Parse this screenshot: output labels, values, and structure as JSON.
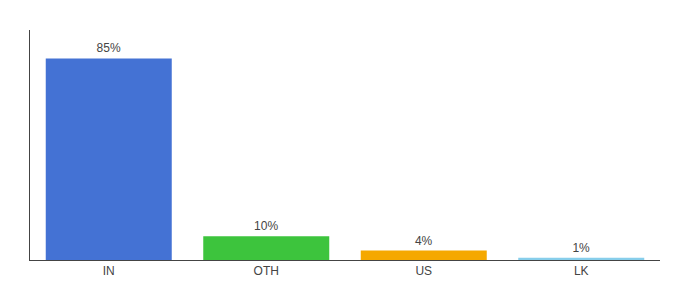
{
  "chart_data": {
    "type": "bar",
    "categories": [
      "IN",
      "OTH",
      "US",
      "LK"
    ],
    "values": [
      85,
      10,
      4,
      1
    ],
    "value_labels": [
      "85%",
      "10%",
      "4%",
      "1%"
    ],
    "data_labels": true,
    "colors": [
      "#4472d4",
      "#3dc43d",
      "#f5a800",
      "#87ceeb"
    ],
    "ylim": [
      0,
      97
    ],
    "grid": false,
    "tick_labels": "x"
  }
}
